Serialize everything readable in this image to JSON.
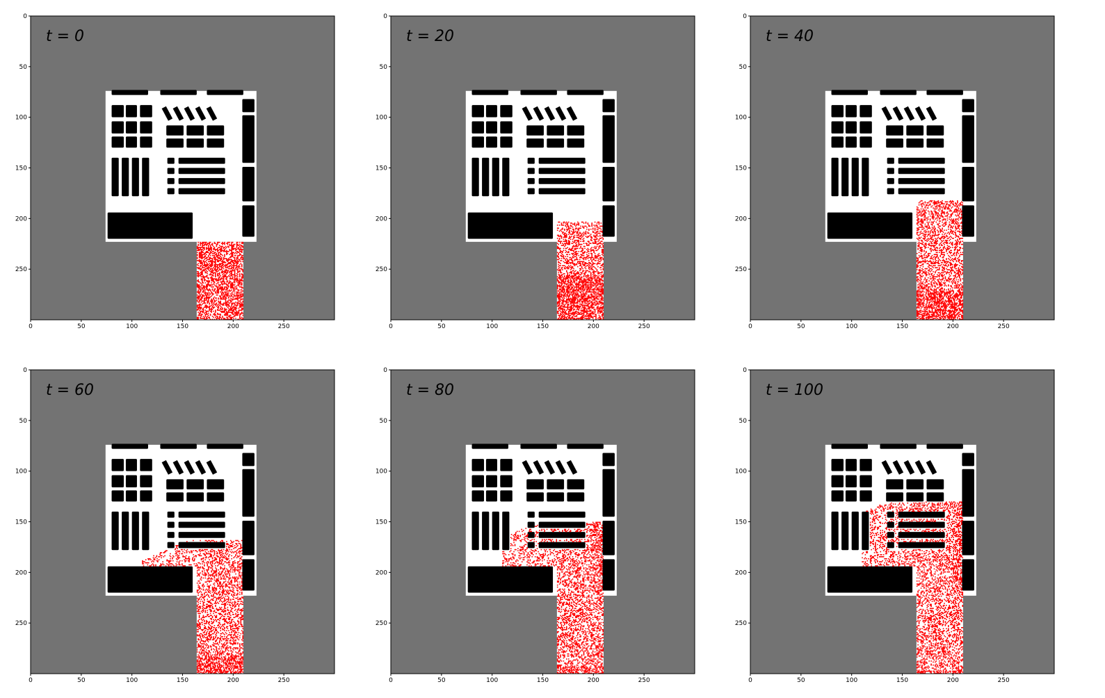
{
  "chart_data": {
    "type": "heatmap",
    "description_free": true,
    "grid_size": 300,
    "xlim": [
      0,
      300
    ],
    "ylim": [
      300,
      0
    ],
    "xticks": [
      0,
      50,
      100,
      150,
      200,
      250
    ],
    "yticks": [
      0,
      50,
      100,
      150,
      200,
      250
    ],
    "colors": {
      "background": "#737373",
      "floor": "#ffffff",
      "furniture": "#000000",
      "agents": "#ff0000",
      "markers": "#2fd6c8"
    },
    "floor_rect": [
      74,
      74,
      223,
      223
    ],
    "corridor": {
      "x": [
        164,
        210
      ],
      "y": [
        223,
        300
      ]
    },
    "furniture": [
      [
        80,
        73,
        116,
        78
      ],
      [
        128,
        73,
        164,
        78
      ],
      [
        174,
        73,
        210,
        78
      ],
      [
        80,
        88,
        92,
        100
      ],
      [
        94,
        88,
        105,
        100
      ],
      [
        108,
        88,
        120,
        100
      ],
      [
        80,
        104,
        92,
        116
      ],
      [
        94,
        104,
        105,
        116
      ],
      [
        108,
        104,
        120,
        116
      ],
      [
        80,
        119,
        92,
        130
      ],
      [
        94,
        119,
        105,
        130
      ],
      [
        108,
        119,
        120,
        130
      ],
      [
        134,
        108,
        151,
        118
      ],
      [
        154,
        108,
        171,
        118
      ],
      [
        174,
        108,
        191,
        118
      ],
      [
        134,
        121,
        151,
        130
      ],
      [
        154,
        121,
        171,
        130
      ],
      [
        174,
        121,
        191,
        130
      ],
      [
        80,
        140,
        87,
        178
      ],
      [
        90,
        140,
        97,
        178
      ],
      [
        100,
        140,
        107,
        178
      ],
      [
        110,
        140,
        117,
        178
      ],
      [
        135,
        140,
        142,
        146
      ],
      [
        146,
        140,
        192,
        146
      ],
      [
        135,
        150,
        142,
        156
      ],
      [
        146,
        150,
        192,
        156
      ],
      [
        135,
        160,
        142,
        166
      ],
      [
        146,
        160,
        192,
        166
      ],
      [
        135,
        170,
        142,
        176
      ],
      [
        146,
        170,
        192,
        176
      ],
      [
        209,
        82,
        221,
        95
      ],
      [
        209,
        98,
        221,
        145
      ],
      [
        209,
        149,
        221,
        183
      ],
      [
        209,
        187,
        221,
        218
      ],
      [
        76,
        194,
        160,
        220
      ]
    ],
    "desks": [
      [
        132,
        89,
        137,
        104
      ],
      [
        143,
        89,
        148,
        104
      ],
      [
        154,
        89,
        159,
        104
      ],
      [
        165,
        89,
        170,
        104
      ],
      [
        176,
        89,
        181,
        104
      ]
    ],
    "panels": [
      {
        "label": "t = 0",
        "front": 223,
        "density": 0.5,
        "bottom_band": 0,
        "spill": 0
      },
      {
        "label": "t = 20",
        "front": 203,
        "density": 0.38,
        "bottom_band": 45,
        "spill": 0
      },
      {
        "label": "t = 40",
        "front": 182,
        "density": 0.38,
        "bottom_band": 30,
        "spill": 0
      },
      {
        "label": "t = 60",
        "front": 168,
        "density": 0.36,
        "bottom_band": 18,
        "spill": 1
      },
      {
        "label": "t = 80",
        "front": 150,
        "density": 0.36,
        "bottom_band": 8,
        "spill": 2
      },
      {
        "label": "t = 100",
        "front": 130,
        "density": 0.34,
        "bottom_band": 4,
        "spill": 3
      }
    ]
  }
}
